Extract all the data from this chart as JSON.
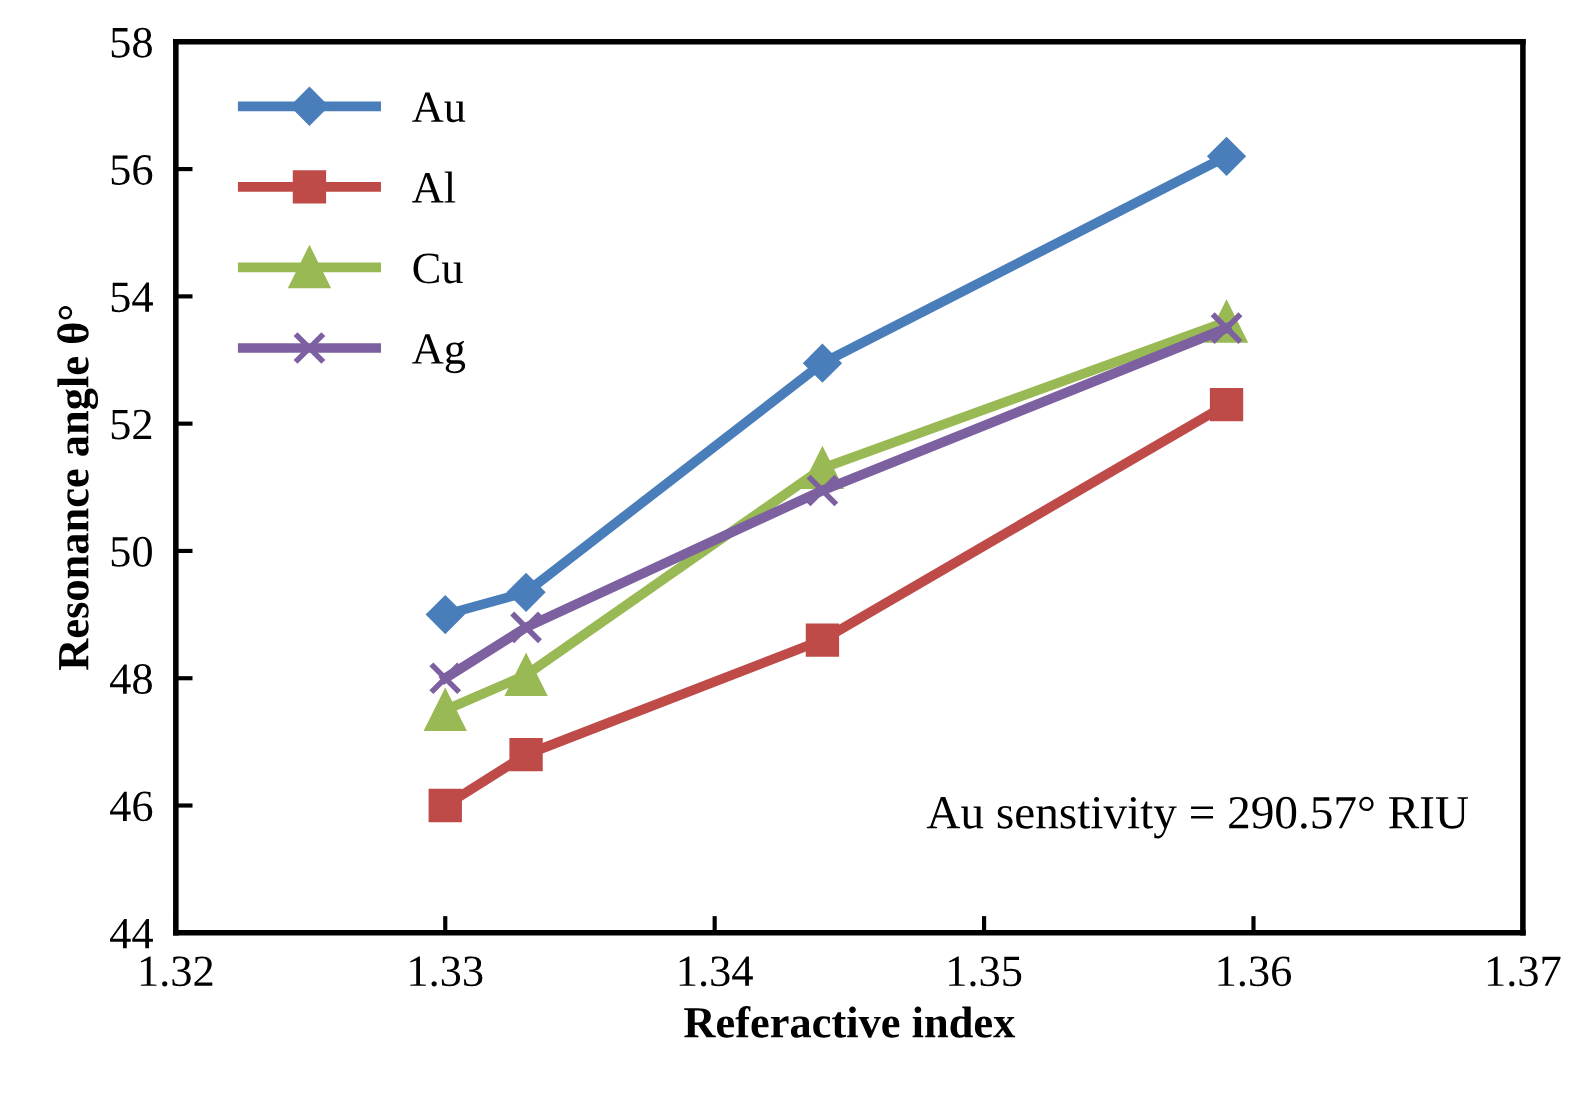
{
  "chart_data": {
    "type": "line",
    "xlabel": "Referactive index",
    "ylabel": "Resonance angle θ°",
    "x": [
      1.33,
      1.333,
      1.344,
      1.359
    ],
    "series": [
      {
        "name": "Au",
        "color": "#4a7ebb",
        "marker": "diamond",
        "values": [
          49.0,
          49.35,
          52.95,
          56.2
        ]
      },
      {
        "name": "Al",
        "color": "#be4b48",
        "marker": "square",
        "values": [
          46.0,
          46.8,
          48.6,
          52.3
        ]
      },
      {
        "name": "Cu",
        "color": "#98b954",
        "marker": "triangle",
        "values": [
          47.5,
          48.05,
          51.3,
          53.6
        ]
      },
      {
        "name": "Ag",
        "color": "#7d60a0",
        "marker": "cross",
        "values": [
          48.0,
          48.8,
          50.95,
          53.5
        ]
      }
    ],
    "xlim": [
      1.32,
      1.37
    ],
    "xticks": [
      {
        "value": 1.32,
        "label": "1.32"
      },
      {
        "value": 1.33,
        "label": "1.33"
      },
      {
        "value": 1.34,
        "label": "1.34"
      },
      {
        "value": 1.35,
        "label": "1.35"
      },
      {
        "value": 1.36,
        "label": "1.36"
      },
      {
        "value": 1.37,
        "label": "1.37"
      }
    ],
    "ylim": [
      44,
      58
    ],
    "yticks": [
      44,
      46,
      48,
      50,
      52,
      54,
      56,
      58
    ],
    "grid": false,
    "legend": "top left",
    "line_style": "solid",
    "annotations": [
      "Au senstivity = 290.57° RIU"
    ]
  }
}
